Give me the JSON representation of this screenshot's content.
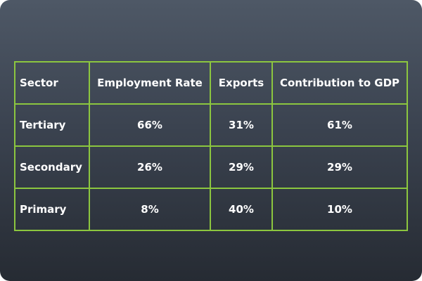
{
  "chart_data": {
    "type": "table",
    "columns": [
      "Sector",
      "Employment Rate",
      "Exports",
      "Contribution to GDP"
    ],
    "rows": [
      [
        "Tertiary",
        "66%",
        "31%",
        "61%"
      ],
      [
        "Secondary",
        "26%",
        "29%",
        "29%"
      ],
      [
        "Primary",
        "8%",
        "40%",
        "10%"
      ]
    ]
  },
  "colors": {
    "grid": "#8cc63f",
    "text": "#ffffff",
    "background_top": "#4e5866",
    "background_bottom": "#262b33"
  }
}
